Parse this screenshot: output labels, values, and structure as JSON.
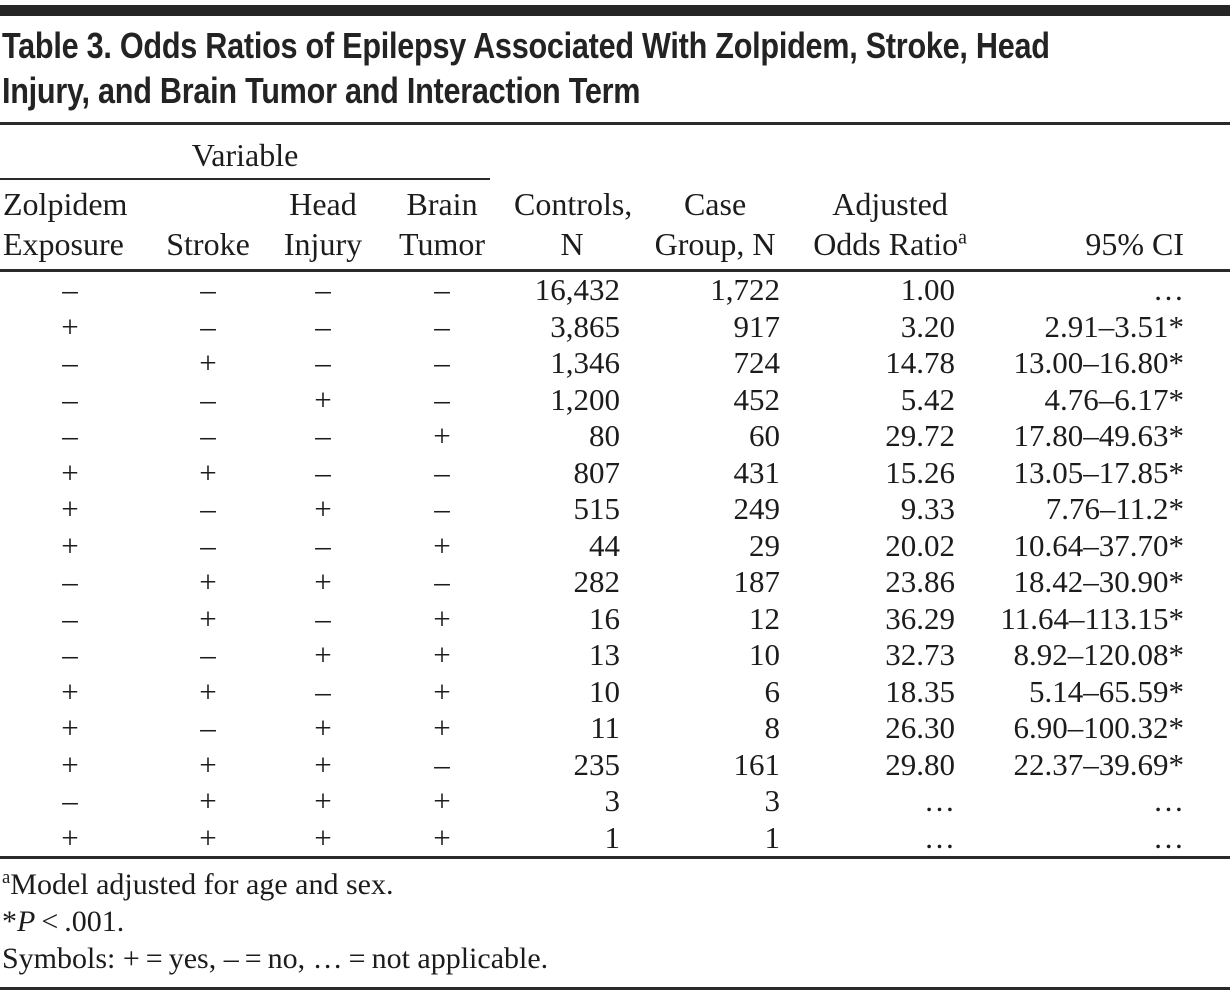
{
  "page": {
    "title_line1": "Table 3. Odds Ratios of Epilepsy Associated With Zolpidem, Stroke, Head",
    "title_line2": "Injury, and Brain Tumor and Interaction Term"
  },
  "table": {
    "spanner": "Variable",
    "headers": [
      {
        "l1": "Zolpidem",
        "l2": "Exposure"
      },
      {
        "l1": "",
        "l2": "Stroke"
      },
      {
        "l1": "Head",
        "l2": "Injury"
      },
      {
        "l1": "Brain",
        "l2": "Tumor"
      },
      {
        "l1": "Controls,",
        "l2": "N"
      },
      {
        "l1": "Case",
        "l2": "Group, N"
      },
      {
        "l1": "Adjusted",
        "l2": "Odds Ratio",
        "sup": "a"
      },
      {
        "l1": "",
        "l2": "95% CI"
      }
    ],
    "rows": [
      [
        "–",
        "–",
        "–",
        "–",
        "16,432",
        "1,722",
        "1.00",
        "…"
      ],
      [
        "+",
        "–",
        "–",
        "–",
        "3,865",
        "917",
        "3.20",
        "2.91–3.51*"
      ],
      [
        "–",
        "+",
        "–",
        "–",
        "1,346",
        "724",
        "14.78",
        "13.00–16.80*"
      ],
      [
        "–",
        "–",
        "+",
        "–",
        "1,200",
        "452",
        "5.42",
        "4.76–6.17*"
      ],
      [
        "–",
        "–",
        "–",
        "+",
        "80",
        "60",
        "29.72",
        "17.80–49.63*"
      ],
      [
        "+",
        "+",
        "–",
        "–",
        "807",
        "431",
        "15.26",
        "13.05–17.85*"
      ],
      [
        "+",
        "–",
        "+",
        "–",
        "515",
        "249",
        "9.33",
        "7.76–11.2*"
      ],
      [
        "+",
        "–",
        "–",
        "+",
        "44",
        "29",
        "20.02",
        "10.64–37.70*"
      ],
      [
        "–",
        "+",
        "+",
        "–",
        "282",
        "187",
        "23.86",
        "18.42–30.90*"
      ],
      [
        "–",
        "+",
        "–",
        "+",
        "16",
        "12",
        "36.29",
        "11.64–113.15*"
      ],
      [
        "–",
        "–",
        "+",
        "+",
        "13",
        "10",
        "32.73",
        "8.92–120.08*"
      ],
      [
        "+",
        "+",
        "–",
        "+",
        "10",
        "6",
        "18.35",
        "5.14–65.59*"
      ],
      [
        "+",
        "–",
        "+",
        "+",
        "11",
        "8",
        "26.30",
        "6.90–100.32*"
      ],
      [
        "+",
        "+",
        "+",
        "–",
        "235",
        "161",
        "29.80",
        "22.37–39.69*"
      ],
      [
        "–",
        "+",
        "+",
        "+",
        "3",
        "3",
        "…",
        "…"
      ],
      [
        "+",
        "+",
        "+",
        "+",
        "1",
        "1",
        "…",
        "…"
      ]
    ]
  },
  "footnotes": {
    "fn1_sup": "a",
    "fn1_text": "Model adjusted for age and sex.",
    "fn2_star": "*",
    "fn2_p": "P",
    "fn2_rest": " < .001.",
    "fn3": "Symbols: + = yes, – = no, … = not applicable."
  },
  "colors": {
    "ink": "#1c1c1c",
    "rule": "#2a2a2a"
  }
}
